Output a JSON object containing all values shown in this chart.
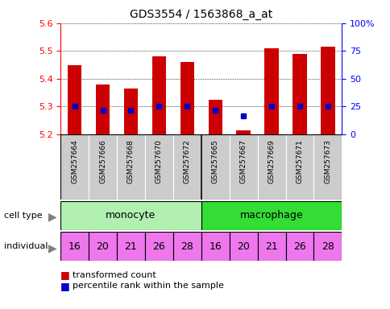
{
  "title": "GDS3554 / 1563868_a_at",
  "samples": [
    "GSM257664",
    "GSM257666",
    "GSM257668",
    "GSM257670",
    "GSM257672",
    "GSM257665",
    "GSM257667",
    "GSM257669",
    "GSM257671",
    "GSM257673"
  ],
  "transformed_count": [
    5.45,
    5.38,
    5.365,
    5.48,
    5.46,
    5.325,
    5.215,
    5.51,
    5.49,
    5.515
  ],
  "percentile_rank": [
    25,
    22,
    22,
    25,
    25,
    22,
    17,
    25,
    25,
    25
  ],
  "ylim_left": [
    5.2,
    5.6
  ],
  "ylim_right": [
    0,
    100
  ],
  "yticks_left": [
    5.2,
    5.3,
    5.4,
    5.5,
    5.6
  ],
  "yticks_right": [
    0,
    25,
    50,
    75,
    100
  ],
  "individuals": [
    16,
    20,
    21,
    26,
    28,
    16,
    20,
    21,
    26,
    28
  ],
  "monocyte_color": "#b2f0b2",
  "macrophage_color": "#33dd33",
  "individual_color": "#ee77ee",
  "bar_color": "#cc0000",
  "dot_color": "#0000cc",
  "sample_bg_color": "#cccccc",
  "bar_bottom": 5.2,
  "legend_bar_label": "transformed count",
  "legend_dot_label": "percentile rank within the sample"
}
